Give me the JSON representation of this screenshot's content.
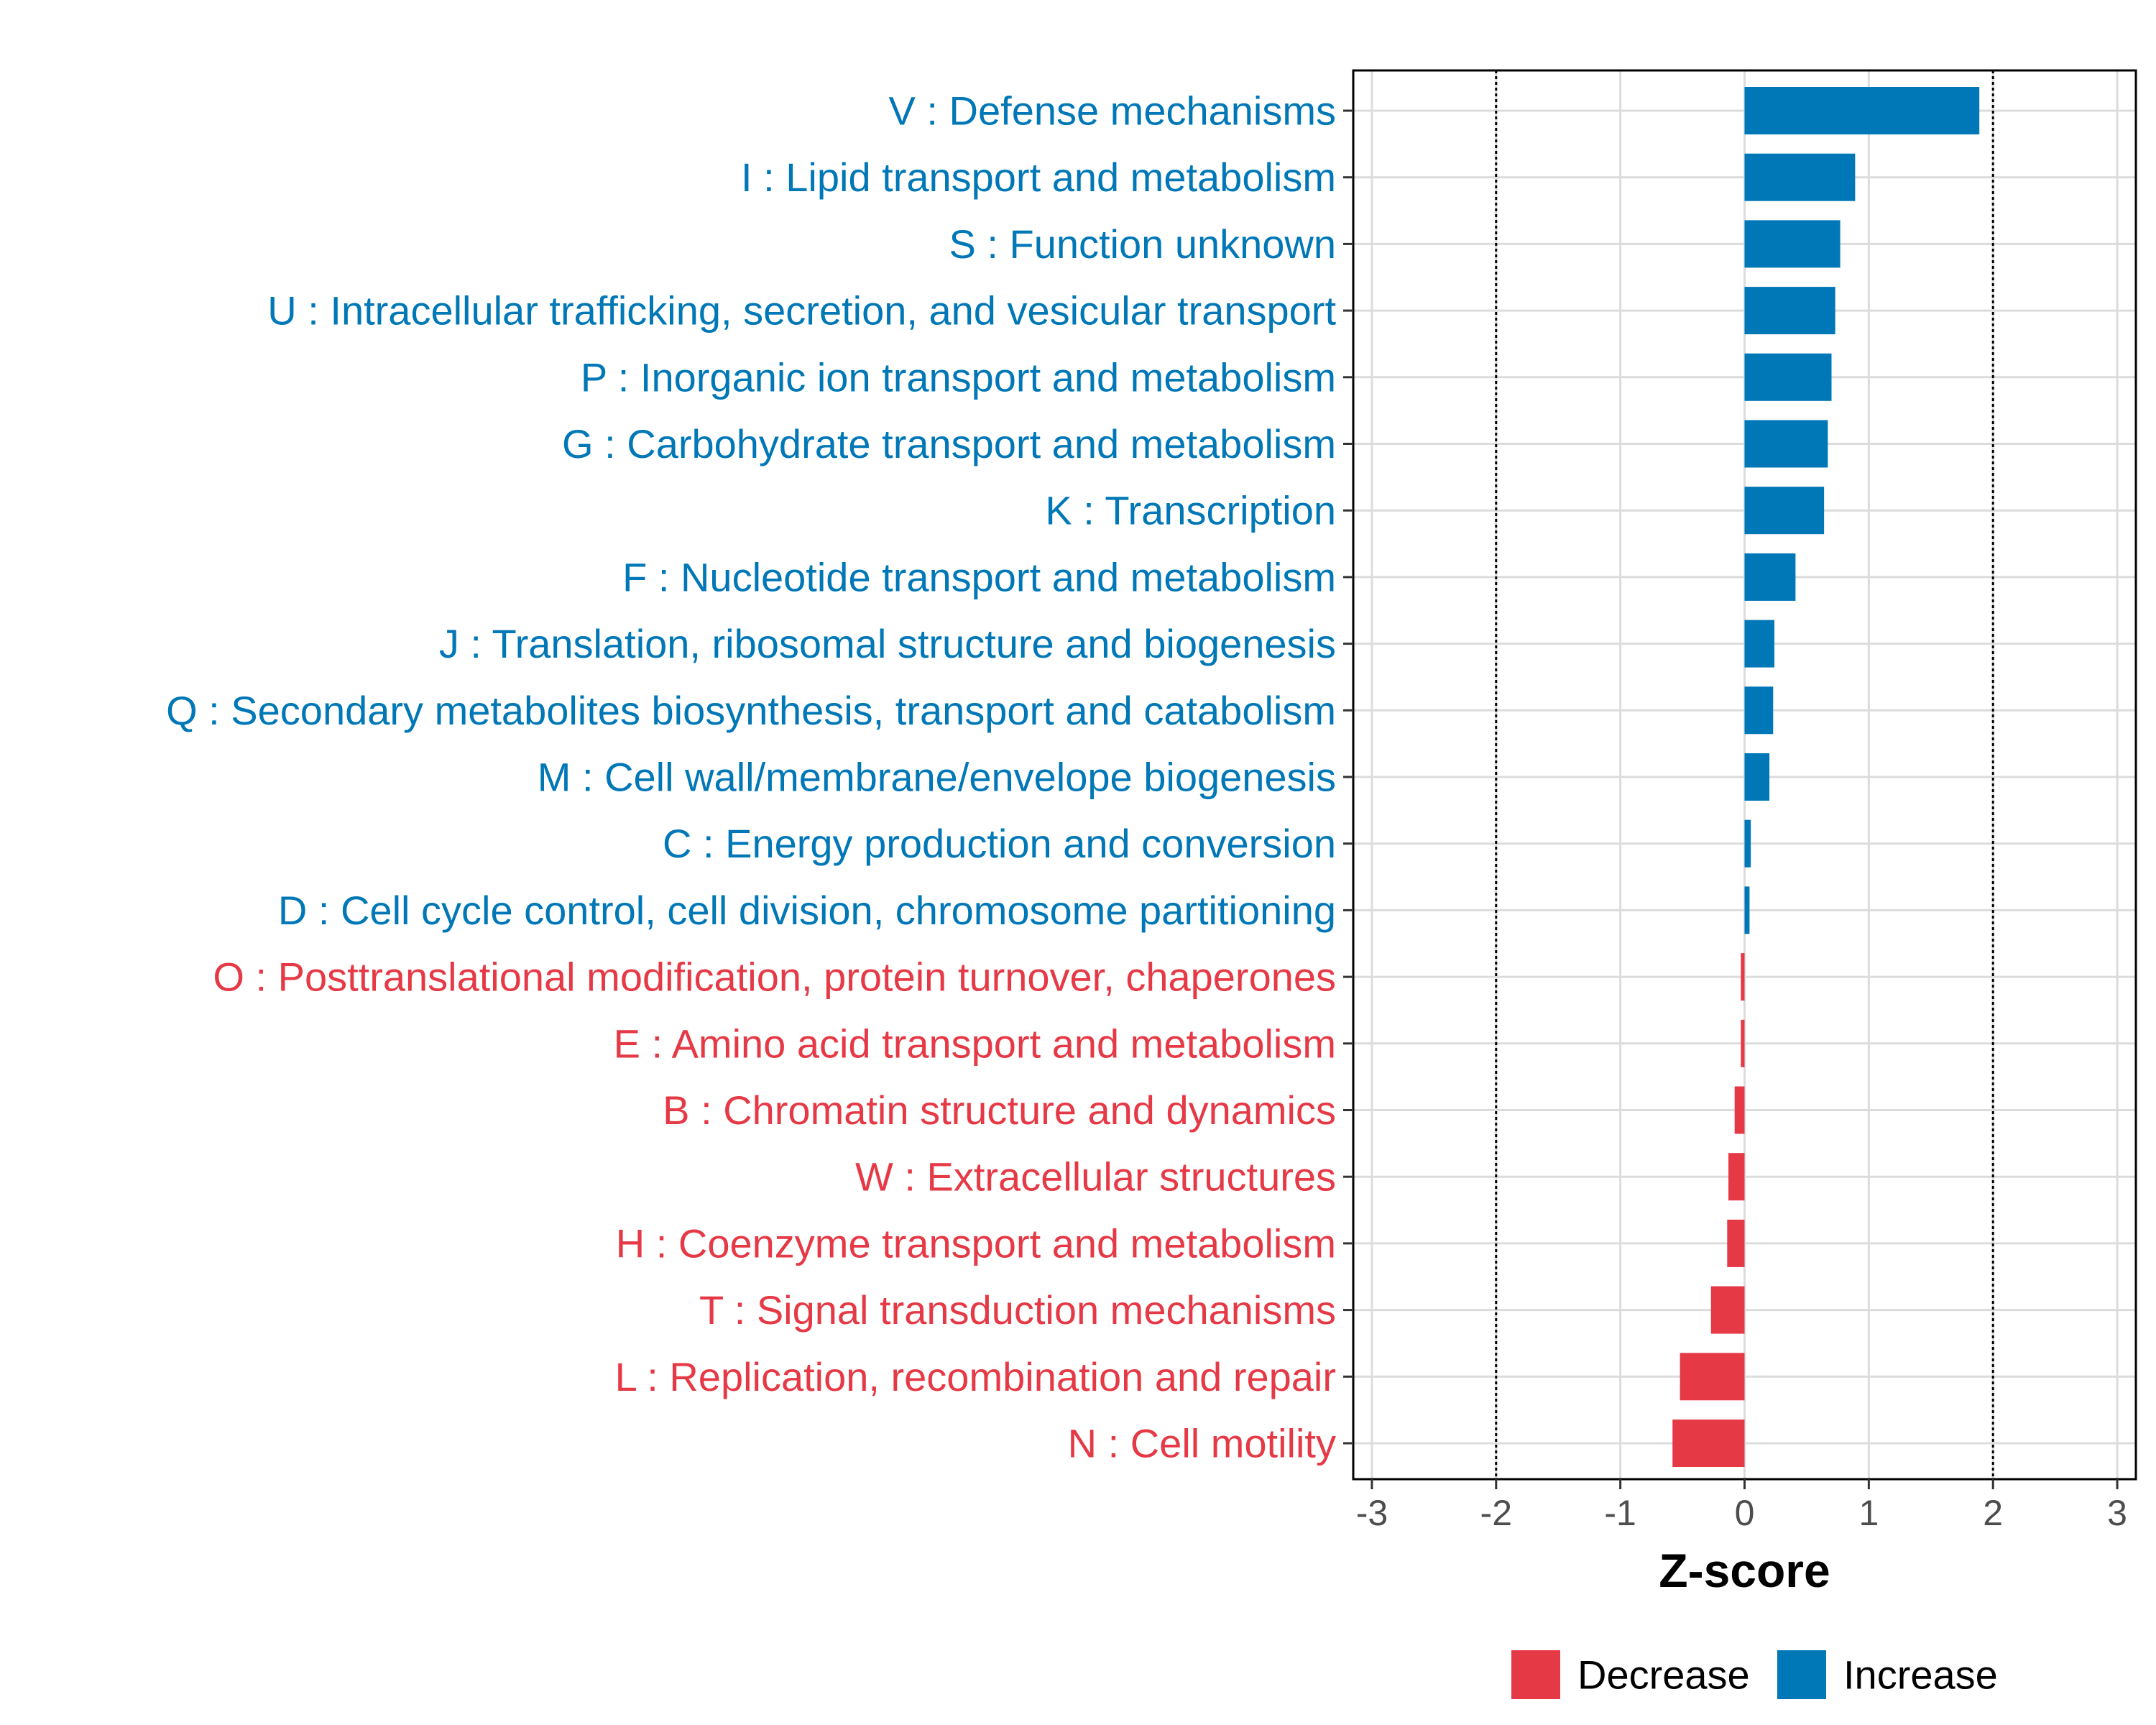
{
  "chart_data": {
    "type": "bar",
    "orientation": "horizontal",
    "title": "",
    "xlabel": "Z-score",
    "ylabel": "",
    "xlim": [
      -3.15,
      3.15
    ],
    "xticks": [
      -3,
      -2,
      -1,
      0,
      1,
      2,
      3
    ],
    "reference_lines": [
      -2,
      2
    ],
    "grid": true,
    "legend_position": "bottom",
    "colors": {
      "Decrease": "#E63946",
      "Increase": "#0077B6"
    },
    "legend": [
      {
        "label": "Decrease",
        "color": "#E63946"
      },
      {
        "label": "Increase",
        "color": "#0077B6"
      }
    ],
    "categories": [
      "V : Defense mechanisms",
      "I : Lipid transport and metabolism",
      "S : Function unknown",
      "U : Intracellular trafficking, secretion, and vesicular transport",
      "P : Inorganic ion transport and metabolism",
      "G : Carbohydrate transport and metabolism",
      "K : Transcription",
      "F : Nucleotide transport and metabolism",
      "J : Translation, ribosomal structure and biogenesis",
      "Q : Secondary metabolites biosynthesis, transport and catabolism",
      "M : Cell wall/membrane/envelope biogenesis",
      "C : Energy production and conversion",
      "D : Cell cycle control, cell division, chromosome partitioning",
      "O : Posttranslational modification, protein turnover, chaperones",
      "E : Amino acid transport and metabolism",
      "B : Chromatin structure and dynamics",
      "W : Extracellular structures",
      "H : Coenzyme transport and metabolism",
      "T : Signal transduction mechanisms",
      "L : Replication, recombination and repair",
      "N : Cell motility"
    ],
    "values": [
      1.89,
      0.89,
      0.77,
      0.73,
      0.7,
      0.67,
      0.64,
      0.41,
      0.24,
      0.23,
      0.2,
      0.05,
      0.04,
      -0.03,
      -0.03,
      -0.08,
      -0.13,
      -0.14,
      -0.27,
      -0.52,
      -0.58
    ],
    "groups": [
      "Increase",
      "Increase",
      "Increase",
      "Increase",
      "Increase",
      "Increase",
      "Increase",
      "Increase",
      "Increase",
      "Increase",
      "Increase",
      "Increase",
      "Increase",
      "Decrease",
      "Decrease",
      "Decrease",
      "Decrease",
      "Decrease",
      "Decrease",
      "Decrease",
      "Decrease"
    ]
  }
}
